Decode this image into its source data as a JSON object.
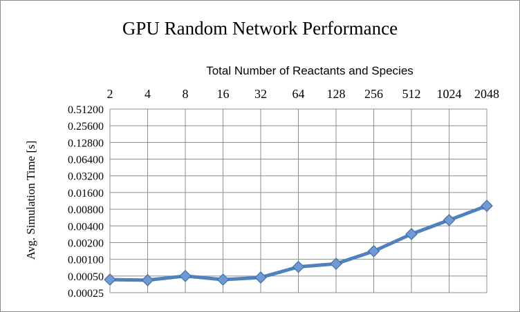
{
  "chart_data": {
    "type": "line",
    "title": "GPU Random Network Performance",
    "xlabel": "Total Number of Reactants and Species",
    "ylabel": "Avg. Simulation Time [s]",
    "y_scale": "log2",
    "ylim": [
      0.00025,
      0.512
    ],
    "x_axis_position": "top",
    "grid": true,
    "legend": "none",
    "categories": [
      "2",
      "4",
      "8",
      "16",
      "32",
      "64",
      "128",
      "256",
      "512",
      "1024",
      "2048"
    ],
    "y_ticks": [
      "0.51200",
      "0.25600",
      "0.12800",
      "0.06400",
      "0.03200",
      "0.01600",
      "0.00800",
      "0.00400",
      "0.00200",
      "0.00100",
      "0.00050",
      "0.00025"
    ],
    "series": [
      {
        "color": "#4f81bd",
        "marker": "diamond",
        "values": [
          0.00043,
          0.00042,
          0.0005,
          0.00043,
          0.00047,
          0.00073,
          0.00083,
          0.0014,
          0.00285,
          0.0051,
          0.0092
        ]
      }
    ]
  }
}
